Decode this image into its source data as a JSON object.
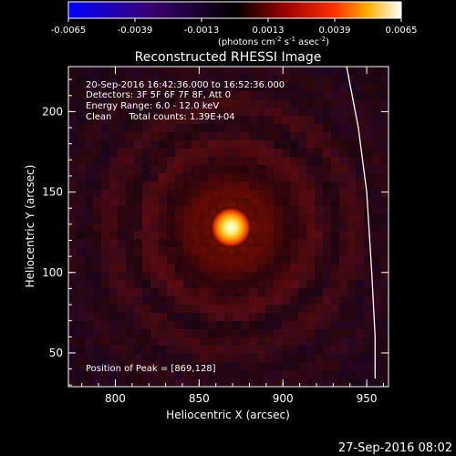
{
  "colorbar": {
    "tick_labels": [
      "-0.0065",
      "-0.0039",
      "-0.0013",
      "0.0013",
      "0.0039",
      "0.0065"
    ],
    "min": -0.0065,
    "max": 0.0065,
    "unit_label_main": "(photons cm",
    "unit_label_exp1": "-2",
    "unit_label_s": " s",
    "unit_label_exp2": "-1",
    "unit_label_asec": " asec",
    "unit_label_exp3": "-2",
    "unit_label_close": ")"
  },
  "chart_data": {
    "type": "heatmap",
    "title": "Reconstructed RHESSI Image",
    "xlabel": "Heliocentric X (arcsec)",
    "ylabel": "Heliocentric Y (arcsec)",
    "xlim": [
      772,
      963
    ],
    "ylim": [
      29,
      228
    ],
    "x_ticks": [
      800,
      850,
      900,
      950
    ],
    "y_ticks": [
      50,
      100,
      150,
      200
    ],
    "colormap": "red-temperature (blue-black-red-yellow-white)",
    "peak": {
      "x": 869,
      "y": 128
    },
    "limb_curve": [
      {
        "x": 938,
        "y": 228
      },
      {
        "x": 945,
        "y": 190
      },
      {
        "x": 950,
        "y": 150
      },
      {
        "x": 953,
        "y": 100
      },
      {
        "x": 955,
        "y": 60
      },
      {
        "x": 955,
        "y": 34
      }
    ],
    "annotations": [
      "20-Sep-2016 16:42:36.000 to 16:52:36.000",
      "Detectors: 3F 5F 6F 7F 8F, Att 0",
      "Energy Range: 6.0 - 12.0 keV",
      "Clean      Total counts: 1.39E+04"
    ],
    "peak_label": "Position of Peak = [869,128]"
  },
  "footer": {
    "timestamp": "27-Sep-2016 08:02"
  },
  "colors": {
    "background": "#000000",
    "axis": "#ffffff",
    "text": "#ffffff"
  }
}
